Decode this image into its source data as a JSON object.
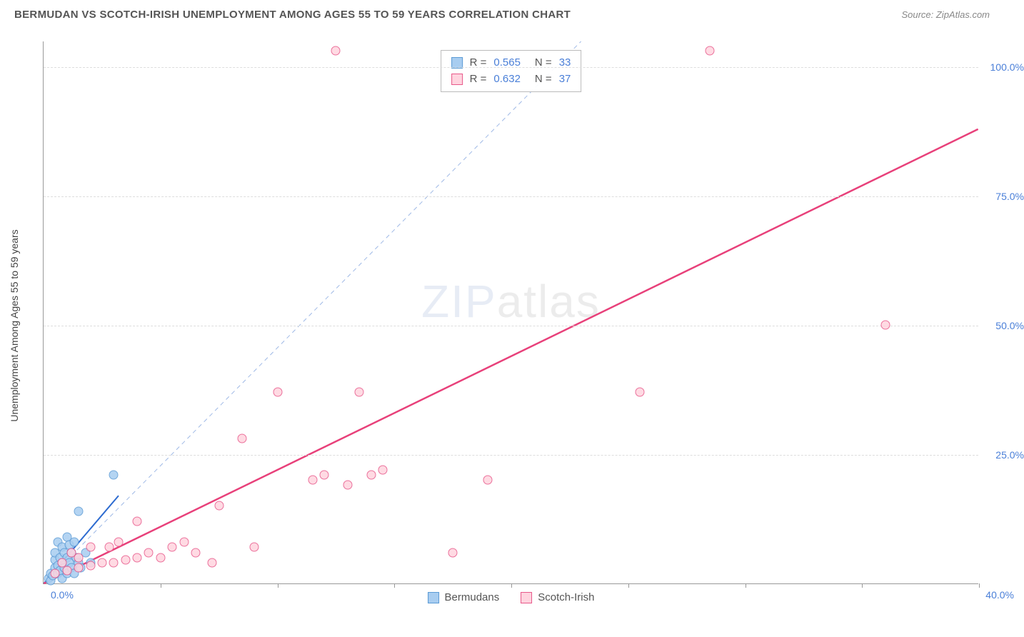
{
  "title": "BERMUDAN VS SCOTCH-IRISH UNEMPLOYMENT AMONG AGES 55 TO 59 YEARS CORRELATION CHART",
  "source": "Source: ZipAtlas.com",
  "y_label": "Unemployment Among Ages 55 to 59 years",
  "watermark_a": "ZIP",
  "watermark_b": "atlas",
  "axes": {
    "xlim": [
      0,
      40
    ],
    "ylim": [
      0,
      105
    ],
    "x_tick_step": 5,
    "y_ticks": [
      25,
      50,
      75,
      100
    ],
    "y_tick_labels": [
      "25.0%",
      "50.0%",
      "75.0%",
      "100.0%"
    ],
    "x_zero_label": "0.0%",
    "x_max_label": "40.0%",
    "grid_color": "#dddddd",
    "axis_color": "#999999"
  },
  "series": [
    {
      "name": "Bermudans",
      "marker_fill": "#a8cdf0",
      "marker_stroke": "#5b9bd5",
      "marker_stroke_w": 1.2,
      "marker_r": 6.5,
      "stats": {
        "R": "0.565",
        "N": "33"
      },
      "trend": {
        "x1": 0,
        "y1": 0,
        "x2": 3.2,
        "y2": 17,
        "color": "#2d6bd0",
        "width": 2,
        "dash": "none"
      },
      "ref_line": {
        "x1": 0,
        "y1": 0,
        "x2": 23,
        "y2": 105,
        "color": "#9fb9e6",
        "width": 1,
        "dash": "6,5"
      },
      "points": [
        [
          0.2,
          1
        ],
        [
          0.3,
          0.5
        ],
        [
          0.3,
          2
        ],
        [
          0.4,
          1.5
        ],
        [
          0.5,
          3
        ],
        [
          0.5,
          4.5
        ],
        [
          0.5,
          6
        ],
        [
          0.6,
          2
        ],
        [
          0.6,
          3.5
        ],
        [
          0.6,
          8
        ],
        [
          0.7,
          2.5
        ],
        [
          0.7,
          5
        ],
        [
          0.8,
          1
        ],
        [
          0.8,
          4
        ],
        [
          0.8,
          7
        ],
        [
          0.9,
          3
        ],
        [
          0.9,
          6
        ],
        [
          1.0,
          2
        ],
        [
          1.0,
          5
        ],
        [
          1.0,
          9
        ],
        [
          1.1,
          4
        ],
        [
          1.1,
          7.5
        ],
        [
          1.2,
          3
        ],
        [
          1.2,
          6
        ],
        [
          1.3,
          2
        ],
        [
          1.3,
          8
        ],
        [
          1.4,
          5
        ],
        [
          1.5,
          4
        ],
        [
          1.5,
          14
        ],
        [
          1.6,
          3
        ],
        [
          1.8,
          6
        ],
        [
          2.0,
          4
        ],
        [
          3.0,
          21
        ]
      ]
    },
    {
      "name": "Scotch-Irish",
      "marker_fill": "#ffd4df",
      "marker_stroke": "#e8588a",
      "marker_stroke_w": 1.2,
      "marker_r": 6.5,
      "stats": {
        "R": "0.632",
        "N": "37"
      },
      "trend": {
        "x1": 0,
        "y1": 0,
        "x2": 40,
        "y2": 88,
        "color": "#e8407a",
        "width": 2.5,
        "dash": "none"
      },
      "points": [
        [
          0.5,
          2
        ],
        [
          0.8,
          4
        ],
        [
          1.0,
          2.5
        ],
        [
          1.2,
          6
        ],
        [
          1.5,
          3
        ],
        [
          1.5,
          5
        ],
        [
          2.0,
          3.5
        ],
        [
          2.0,
          7
        ],
        [
          2.5,
          4
        ],
        [
          2.8,
          7
        ],
        [
          3.0,
          4
        ],
        [
          3.2,
          8
        ],
        [
          3.5,
          4.5
        ],
        [
          4.0,
          5
        ],
        [
          4.0,
          12
        ],
        [
          4.5,
          6
        ],
        [
          5.0,
          5
        ],
        [
          5.5,
          7
        ],
        [
          6.0,
          8
        ],
        [
          6.5,
          6
        ],
        [
          7.2,
          4
        ],
        [
          7.5,
          15
        ],
        [
          8.5,
          28
        ],
        [
          9.0,
          7
        ],
        [
          10.0,
          37
        ],
        [
          11.5,
          20
        ],
        [
          12.0,
          21
        ],
        [
          12.5,
          103
        ],
        [
          13.0,
          19
        ],
        [
          13.5,
          37
        ],
        [
          14.0,
          21
        ],
        [
          14.5,
          22
        ],
        [
          17.5,
          6
        ],
        [
          19.0,
          20
        ],
        [
          25.5,
          37
        ],
        [
          28.5,
          103
        ],
        [
          36.0,
          50
        ]
      ]
    }
  ],
  "legend": {
    "items": [
      {
        "label": "Bermudans",
        "fill": "#a8cdf0",
        "stroke": "#5b9bd5"
      },
      {
        "label": "Scotch-Irish",
        "fill": "#ffd4df",
        "stroke": "#e8588a"
      }
    ]
  }
}
